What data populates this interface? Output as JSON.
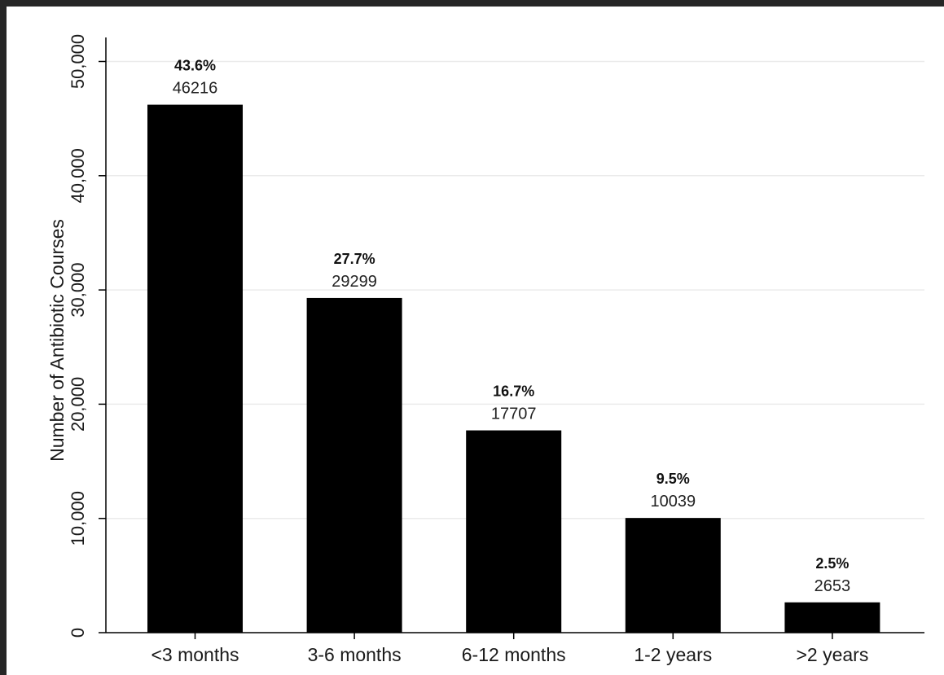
{
  "chart_data": {
    "type": "bar",
    "ylabel": "Number of Antibiotic Courses",
    "xlabel": "",
    "title": "",
    "ylim": [
      0,
      52000
    ],
    "yticks": [
      0,
      10000,
      20000,
      30000,
      40000,
      50000
    ],
    "ytick_labels": [
      "0",
      "10,000",
      "20,000",
      "30,000",
      "40,000",
      "50,000"
    ],
    "grid": true,
    "categories": [
      "<3 months",
      "3-6 months",
      "6-12 months",
      "1-2 years",
      ">2 years"
    ],
    "values": [
      46216,
      29299,
      17707,
      10039,
      2653
    ],
    "value_labels": [
      "46216",
      "29299",
      "17707",
      "10039",
      "2653"
    ],
    "percent_labels": [
      "43.6%",
      "27.7%",
      "16.7%",
      "9.5%",
      "2.5%"
    ],
    "bar_color": "#000000",
    "grid_color": "#ebebeb"
  }
}
